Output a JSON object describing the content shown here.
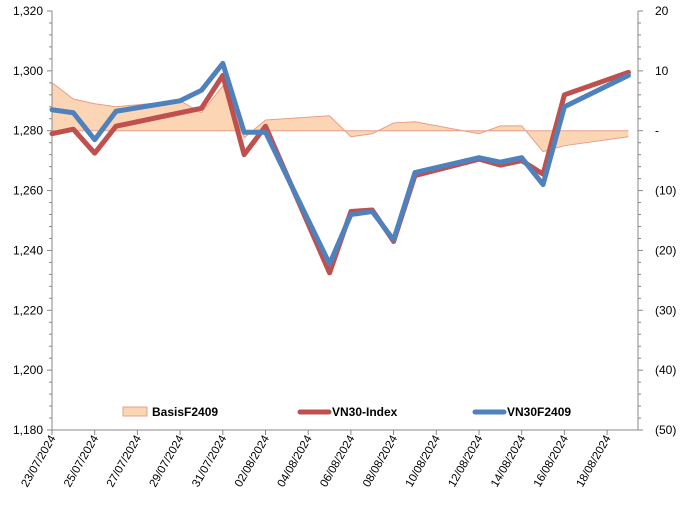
{
  "chart_data": {
    "type": "line",
    "x": [
      "23/07/2024",
      "24/07/2024",
      "25/07/2024",
      "26/07/2024",
      "29/07/2024",
      "30/07/2024",
      "31/07/2024",
      "01/08/2024",
      "02/08/2024",
      "05/08/2024",
      "06/08/2024",
      "07/08/2024",
      "08/08/2024",
      "09/08/2024",
      "12/08/2024",
      "13/08/2024",
      "14/08/2024",
      "15/08/2024",
      "16/08/2024",
      "19/08/2024"
    ],
    "x_tick_labels": [
      "23/07/2024",
      "25/07/2024",
      "27/07/2024",
      "29/07/2024",
      "31/07/2024",
      "02/08/2024",
      "04/08/2024",
      "06/08/2024",
      "08/08/2024",
      "10/08/2024",
      "12/08/2024",
      "14/08/2024",
      "16/08/2024",
      "18/08/2024"
    ],
    "y_left": {
      "min": 1180,
      "max": 1320,
      "step": 20,
      "tick_labels": [
        "1,180",
        "1,200",
        "1,220",
        "1,240",
        "1,260",
        "1,280",
        "1,300",
        "1,320"
      ]
    },
    "y_right": {
      "min": -50,
      "max": 20,
      "step": 10,
      "tick_labels": [
        "(50)",
        "(40)",
        "(30)",
        "(20)",
        "(10)",
        "-",
        "10",
        "20"
      ]
    },
    "series": [
      {
        "name": "BasisF2409",
        "kind": "area",
        "axis": "right",
        "color": "#fcd5b4",
        "edge_color": "#e6a08a",
        "values": [
          8.0,
          5.3,
          4.5,
          4.0,
          5.0,
          3.0,
          7.5,
          -1.2,
          1.8,
          2.5,
          -1.0,
          -0.5,
          1.3,
          1.5,
          -0.5,
          0.8,
          0.8,
          -3.5,
          -2.5,
          -1.0
        ]
      },
      {
        "name": "VN30-Index",
        "kind": "line",
        "axis": "left",
        "color": "#c0504d",
        "values": [
          1279,
          1280.5,
          1272.5,
          1281.5,
          1286,
          1287.5,
          1298.5,
          1272,
          1281.5,
          1232.5,
          1253,
          1253.5,
          1243,
          1265,
          1270.5,
          1268.5,
          1270,
          1265.5,
          1292,
          1299.5
        ]
      },
      {
        "name": "VN30F2409",
        "kind": "line",
        "axis": "left",
        "color": "#4f81bd",
        "values": [
          1287,
          1286,
          1277,
          1286.5,
          1290,
          1293.5,
          1302.5,
          1279.5,
          1279.5,
          1235.5,
          1252,
          1253,
          1243.5,
          1266,
          1271,
          1269.5,
          1271,
          1262,
          1288,
          1298.5
        ]
      }
    ],
    "legend": [
      {
        "label": "BasisF2409",
        "swatch": "area"
      },
      {
        "label": "VN30-Index",
        "swatch": "line"
      },
      {
        "label": "VN30F2409",
        "swatch": "line"
      }
    ],
    "legend_position": "bottom",
    "grid": false
  }
}
